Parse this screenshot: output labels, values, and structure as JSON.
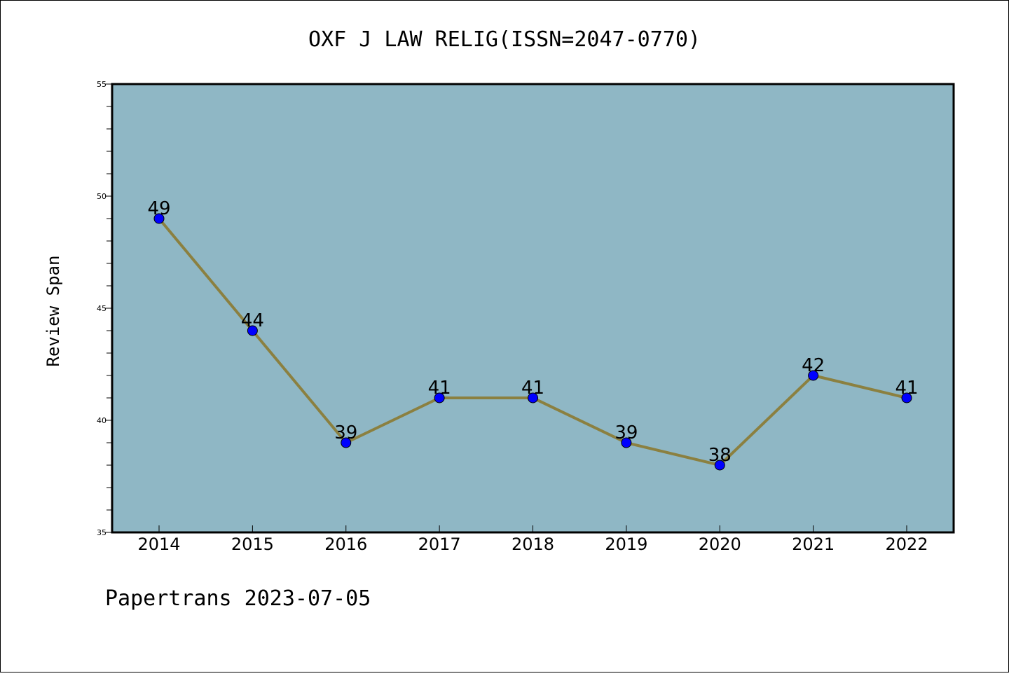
{
  "chart_data": {
    "type": "line",
    "title": "OXF J LAW RELIG(ISSN=2047-0770)",
    "xlabel": "",
    "ylabel": "Review Span",
    "categories": [
      "2014",
      "2015",
      "2016",
      "2017",
      "2018",
      "2019",
      "2020",
      "2021",
      "2022"
    ],
    "series": [
      {
        "values": [
          49,
          44,
          39,
          41,
          41,
          39,
          38,
          42,
          41
        ]
      }
    ],
    "ylim": [
      35,
      55
    ],
    "yticks": [
      "35",
      "40",
      "45",
      "50",
      "55"
    ],
    "grid": false,
    "legend": "none",
    "colors": {
      "plot_background": "#8fb7c5",
      "line": "#8b8040",
      "marker": "#0000ff"
    }
  },
  "footer": {
    "text": "Papertrans 2023-07-05"
  }
}
